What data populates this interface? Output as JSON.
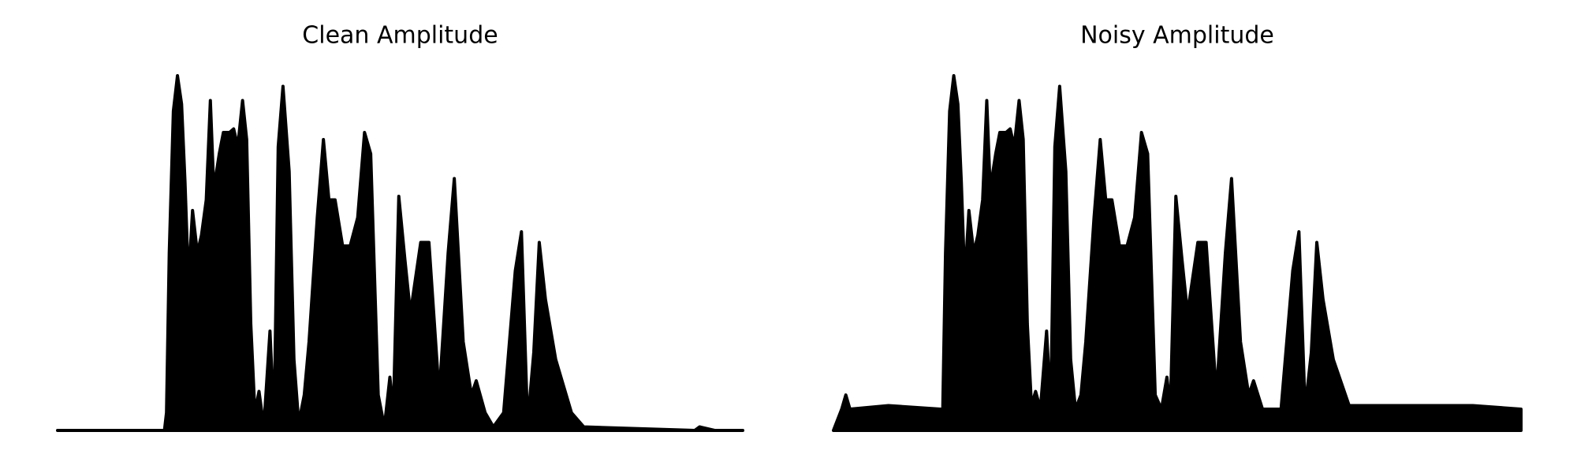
{
  "chart_data": [
    {
      "type": "area",
      "title": "Clean Amplitude",
      "color": "#000000",
      "xlim": [
        0,
        100
      ],
      "ylim": [
        0,
        1
      ],
      "x": [
        0,
        15.6,
        15.9,
        16.3,
        16.9,
        17.5,
        18.1,
        18.6,
        19.1,
        19.7,
        20.4,
        21.0,
        21.7,
        22.3,
        22.8,
        23.6,
        24.2,
        25.1,
        25.7,
        26.3,
        27.0,
        27.6,
        28.2,
        28.8,
        29.4,
        30.1,
        31.0,
        31.6,
        32.2,
        32.9,
        33.8,
        34.5,
        35.2,
        36.0,
        36.7,
        37.9,
        38.8,
        39.6,
        40.5,
        41.6,
        42.7,
        43.8,
        44.8,
        45.7,
        46.8,
        47.7,
        48.5,
        49.0,
        49.8,
        50.7,
        51.5,
        53.0,
        54.2,
        55.7,
        57.0,
        57.9,
        59.2,
        60.4,
        61.1,
        62.4,
        63.6,
        65.1,
        66.8,
        67.7,
        68.6,
        69.5,
        70.3,
        71.2,
        72.7,
        75.0,
        76.8,
        93.0,
        93.7,
        95.9,
        100
      ],
      "values": [
        0,
        0,
        0.05,
        0.5,
        0.9,
        1.0,
        0.92,
        0.7,
        0.42,
        0.62,
        0.5,
        0.55,
        0.65,
        0.93,
        0.68,
        0.78,
        0.84,
        0.84,
        0.85,
        0.8,
        0.93,
        0.82,
        0.3,
        0.05,
        0.11,
        0.01,
        0.28,
        0.02,
        0.8,
        0.97,
        0.73,
        0.2,
        0.02,
        0.1,
        0.25,
        0.6,
        0.82,
        0.65,
        0.65,
        0.52,
        0.52,
        0.6,
        0.84,
        0.78,
        0.1,
        0.01,
        0.15,
        0.05,
        0.66,
        0.48,
        0.33,
        0.53,
        0.53,
        0.1,
        0.5,
        0.71,
        0.25,
        0.1,
        0.14,
        0.05,
        0.01,
        0.05,
        0.45,
        0.56,
        0.02,
        0.22,
        0.53,
        0.37,
        0.2,
        0.05,
        0.01,
        0,
        0.01,
        0,
        0
      ]
    },
    {
      "type": "area",
      "title": "Noisy Amplitude",
      "color": "#000000",
      "xlim": [
        0,
        100
      ],
      "ylim": [
        0,
        1
      ],
      "x": [
        0,
        1.2,
        1.8,
        2.4,
        8.0,
        15.6,
        15.9,
        16.3,
        16.9,
        17.5,
        18.1,
        18.6,
        19.1,
        19.7,
        20.4,
        21.0,
        21.7,
        22.3,
        22.8,
        23.6,
        24.2,
        25.1,
        25.7,
        26.3,
        27.0,
        27.6,
        28.2,
        28.8,
        29.4,
        30.1,
        31.0,
        31.6,
        32.2,
        32.9,
        33.8,
        34.5,
        35.2,
        36.0,
        36.7,
        37.9,
        38.8,
        39.6,
        40.5,
        41.6,
        42.7,
        43.8,
        44.8,
        45.7,
        46.8,
        47.7,
        48.5,
        49.0,
        49.8,
        50.7,
        51.5,
        53.0,
        54.2,
        55.7,
        57.0,
        57.9,
        59.2,
        60.4,
        61.1,
        62.4,
        63.6,
        65.1,
        66.8,
        67.7,
        68.6,
        69.5,
        70.3,
        71.2,
        72.7,
        75.0,
        76.8,
        85,
        93,
        100
      ],
      "values": [
        0,
        0.06,
        0.1,
        0.06,
        0.07,
        0.06,
        0.06,
        0.5,
        0.9,
        1.0,
        0.92,
        0.7,
        0.42,
        0.62,
        0.5,
        0.55,
        0.65,
        0.93,
        0.68,
        0.78,
        0.84,
        0.84,
        0.85,
        0.8,
        0.93,
        0.82,
        0.3,
        0.07,
        0.11,
        0.06,
        0.28,
        0.06,
        0.8,
        0.97,
        0.73,
        0.2,
        0.06,
        0.1,
        0.25,
        0.6,
        0.82,
        0.65,
        0.65,
        0.52,
        0.52,
        0.6,
        0.84,
        0.78,
        0.1,
        0.06,
        0.15,
        0.06,
        0.66,
        0.48,
        0.33,
        0.53,
        0.53,
        0.1,
        0.5,
        0.71,
        0.25,
        0.1,
        0.14,
        0.06,
        0.06,
        0.06,
        0.45,
        0.56,
        0.06,
        0.22,
        0.53,
        0.37,
        0.2,
        0.07,
        0.07,
        0.07,
        0.07,
        0.06
      ]
    }
  ]
}
